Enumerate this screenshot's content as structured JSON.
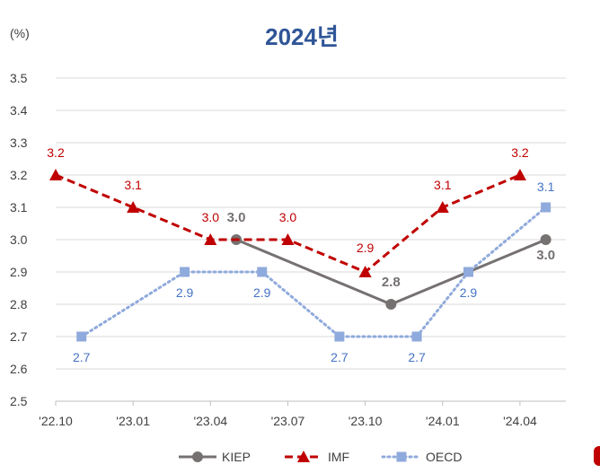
{
  "chart_data": {
    "type": "line",
    "title": "2024년",
    "ylabel": "(%)",
    "xlabel": "",
    "ylim": [
      2.5,
      3.5
    ],
    "yticks": [
      "2.5",
      "2.6",
      "2.7",
      "2.8",
      "2.9",
      "3.0",
      "3.1",
      "3.2",
      "3.3",
      "3.4",
      "3.5"
    ],
    "x_axis_labels": [
      "'22.10",
      "'23.01",
      "'23.04",
      "'23.07",
      "'23.10",
      "'24.01",
      "'24.04"
    ],
    "grid": "horizontal",
    "legend_position": "bottom",
    "series": [
      {
        "name": "KIEP",
        "color": "#767171",
        "line_style": "solid",
        "marker": "circle",
        "label_bold": true,
        "points": [
          {
            "x": "2023-05",
            "y": 3.0,
            "label": "3.0"
          },
          {
            "x": "2023-11",
            "y": 2.8,
            "label": "2.8"
          },
          {
            "x": "2024-05",
            "y": 3.0,
            "label": "3.0"
          }
        ]
      },
      {
        "name": "IMF",
        "color": "#c00000",
        "line_style": "dashed",
        "marker": "triangle",
        "label_bold": false,
        "points": [
          {
            "x": "2022-10",
            "y": 3.2,
            "label": "3.2"
          },
          {
            "x": "2023-01",
            "y": 3.1,
            "label": "3.1"
          },
          {
            "x": "2023-04",
            "y": 3.0,
            "label": "3.0"
          },
          {
            "x": "2023-07",
            "y": 3.0,
            "label": "3.0"
          },
          {
            "x": "2023-10",
            "y": 2.9,
            "label": "2.9"
          },
          {
            "x": "2024-01",
            "y": 3.1,
            "label": "3.1"
          },
          {
            "x": "2024-04",
            "y": 3.2,
            "label": "3.2"
          }
        ]
      },
      {
        "name": "OECD",
        "color": "#8faadc",
        "label_color": "#4472c4",
        "line_style": "dotted",
        "marker": "square",
        "label_bold": false,
        "points": [
          {
            "x": "2022-11",
            "y": 2.7,
            "label": "2.7"
          },
          {
            "x": "2023-03",
            "y": 2.9,
            "label": "2.9"
          },
          {
            "x": "2023-06",
            "y": 2.9,
            "label": "2.9"
          },
          {
            "x": "2023-09",
            "y": 2.7,
            "label": "2.7"
          },
          {
            "x": "2023-12",
            "y": 2.7,
            "label": "2.7"
          },
          {
            "x": "2024-02",
            "y": 2.9,
            "label": "2.9"
          },
          {
            "x": "2024-05",
            "y": 3.1,
            "label": "3.1"
          }
        ]
      }
    ]
  }
}
